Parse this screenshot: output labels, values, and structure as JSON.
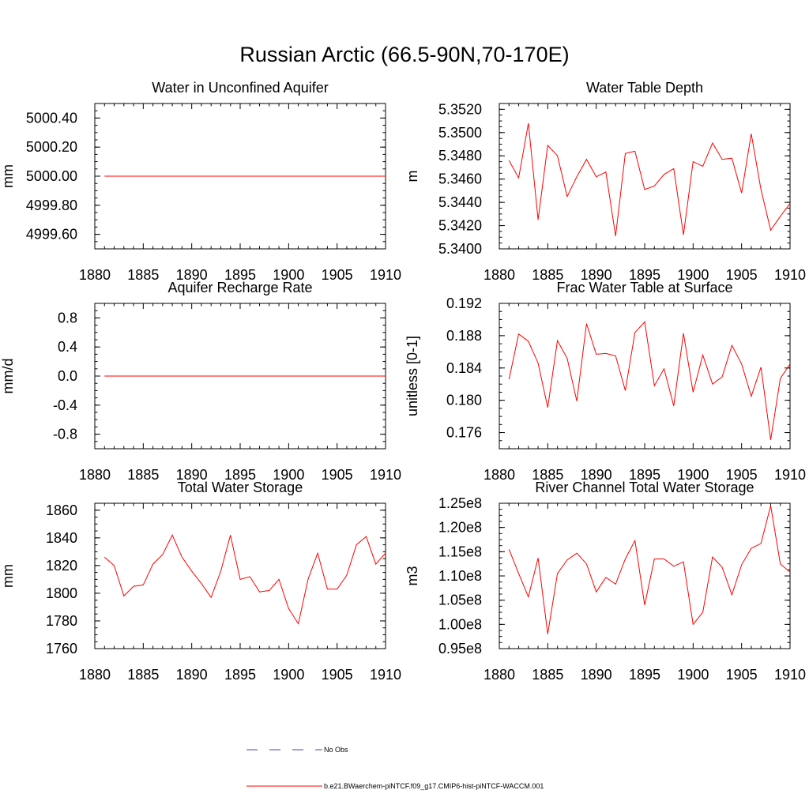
{
  "figure": {
    "title": "Russian Arctic (66.5-90N,70-170E)"
  },
  "legend": {
    "entries": [
      {
        "label": "No Obs",
        "color": "#4a4ab0",
        "style": "dashed"
      },
      {
        "label": "b.e21.BWaerchem-piNTCF.f09_g17.CMIP6-hist-piNTCF-WACCM.001",
        "color": "#ff0000",
        "style": "solid"
      }
    ]
  },
  "chart_data": [
    {
      "type": "line",
      "title": "Water in Unconfined Aquifer",
      "ylabel": "mm",
      "xlim": [
        1880,
        1910
      ],
      "ylim": [
        4999.5,
        5000.5
      ],
      "xticks": [
        1880,
        1885,
        1890,
        1895,
        1900,
        1905,
        1910
      ],
      "yticks": [
        4999.6,
        4999.8,
        5000.0,
        5000.2,
        5000.4
      ],
      "ytick_labels": [
        "4999.60",
        "4999.80",
        "5000.00",
        "5000.20",
        "5000.40"
      ],
      "x": [
        1881,
        1882,
        1883,
        1884,
        1885,
        1886,
        1887,
        1888,
        1889,
        1890,
        1891,
        1892,
        1893,
        1894,
        1895,
        1896,
        1897,
        1898,
        1899,
        1900,
        1901,
        1902,
        1903,
        1904,
        1905,
        1906,
        1907,
        1908,
        1909,
        1910
      ],
      "series": [
        {
          "color": "#ff0000",
          "values": [
            5000,
            5000,
            5000,
            5000,
            5000,
            5000,
            5000,
            5000,
            5000,
            5000,
            5000,
            5000,
            5000,
            5000,
            5000,
            5000,
            5000,
            5000,
            5000,
            5000,
            5000,
            5000,
            5000,
            5000,
            5000,
            5000,
            5000,
            5000,
            5000,
            5000
          ]
        }
      ]
    },
    {
      "type": "line",
      "title": "Water Table Depth",
      "ylabel": "m",
      "xlim": [
        1880,
        1910
      ],
      "ylim": [
        5.34,
        5.3525
      ],
      "xticks": [
        1880,
        1885,
        1890,
        1895,
        1900,
        1905,
        1910
      ],
      "yticks": [
        5.34,
        5.342,
        5.344,
        5.346,
        5.348,
        5.35,
        5.352
      ],
      "ytick_labels": [
        "5.3400",
        "5.3420",
        "5.3440",
        "5.3460",
        "5.3480",
        "5.3500",
        "5.3520"
      ],
      "x": [
        1881,
        1882,
        1883,
        1884,
        1885,
        1886,
        1887,
        1888,
        1889,
        1890,
        1891,
        1892,
        1893,
        1894,
        1895,
        1896,
        1897,
        1898,
        1899,
        1900,
        1901,
        1902,
        1903,
        1904,
        1905,
        1906,
        1907,
        1908,
        1909,
        1910
      ],
      "series": [
        {
          "color": "#ff0000",
          "values": [
            5.3476,
            5.3461,
            5.3508,
            5.3425,
            5.3489,
            5.348,
            5.3445,
            5.3462,
            5.3477,
            5.3462,
            5.3466,
            5.3411,
            5.3482,
            5.3484,
            5.3451,
            5.3454,
            5.3464,
            5.3469,
            5.3412,
            5.3475,
            5.3471,
            5.3491,
            5.3477,
            5.3478,
            5.3448,
            5.3499,
            5.3451,
            5.3416,
            5.3428,
            5.3439
          ]
        }
      ]
    },
    {
      "type": "line",
      "title": "Aquifer Recharge Rate",
      "ylabel": "mm/d",
      "xlim": [
        1880,
        1910
      ],
      "ylim": [
        -1.0,
        1.0
      ],
      "xticks": [
        1880,
        1885,
        1890,
        1895,
        1900,
        1905,
        1910
      ],
      "yticks": [
        -0.8,
        -0.4,
        0.0,
        0.4,
        0.8
      ],
      "ytick_labels": [
        "-0.8",
        "-0.4",
        "0.0",
        "0.4",
        "0.8"
      ],
      "x": [
        1881,
        1882,
        1883,
        1884,
        1885,
        1886,
        1887,
        1888,
        1889,
        1890,
        1891,
        1892,
        1893,
        1894,
        1895,
        1896,
        1897,
        1898,
        1899,
        1900,
        1901,
        1902,
        1903,
        1904,
        1905,
        1906,
        1907,
        1908,
        1909,
        1910
      ],
      "series": [
        {
          "color": "#ff0000",
          "values": [
            0,
            0,
            0,
            0,
            0,
            0,
            0,
            0,
            0,
            0,
            0,
            0,
            0,
            0,
            0,
            0,
            0,
            0,
            0,
            0,
            0,
            0,
            0,
            0,
            0,
            0,
            0,
            0,
            0,
            0
          ]
        }
      ]
    },
    {
      "type": "line",
      "title": "Frac Water Table at Surface",
      "ylabel": "unitless [0-1]",
      "xlim": [
        1880,
        1910
      ],
      "ylim": [
        0.174,
        0.192
      ],
      "xticks": [
        1880,
        1885,
        1890,
        1895,
        1900,
        1905,
        1910
      ],
      "yticks": [
        0.176,
        0.18,
        0.184,
        0.188,
        0.192
      ],
      "ytick_labels": [
        "0.176",
        "0.180",
        "0.184",
        "0.188",
        "0.192"
      ],
      "x": [
        1881,
        1882,
        1883,
        1884,
        1885,
        1886,
        1887,
        1888,
        1889,
        1890,
        1891,
        1892,
        1893,
        1894,
        1895,
        1896,
        1897,
        1898,
        1899,
        1900,
        1901,
        1902,
        1903,
        1904,
        1905,
        1906,
        1907,
        1908,
        1909,
        1910
      ],
      "series": [
        {
          "color": "#ff0000",
          "values": [
            0.1826,
            0.1882,
            0.1873,
            0.1846,
            0.1791,
            0.1874,
            0.1852,
            0.1799,
            0.1895,
            0.1857,
            0.1858,
            0.1855,
            0.1812,
            0.1884,
            0.1897,
            0.1818,
            0.1839,
            0.1793,
            0.1883,
            0.181,
            0.1856,
            0.182,
            0.1829,
            0.1868,
            0.1845,
            0.1805,
            0.1841,
            0.1751,
            0.1827,
            0.1845
          ]
        }
      ]
    },
    {
      "type": "line",
      "title": "Total Water Storage",
      "ylabel": "mm",
      "xlim": [
        1880,
        1910
      ],
      "ylim": [
        1760,
        1865
      ],
      "xticks": [
        1880,
        1885,
        1890,
        1895,
        1900,
        1905,
        1910
      ],
      "yticks": [
        1760,
        1780,
        1800,
        1820,
        1840,
        1860
      ],
      "ytick_labels": [
        "1760",
        "1780",
        "1800",
        "1820",
        "1840",
        "1860"
      ],
      "x": [
        1881,
        1882,
        1883,
        1884,
        1885,
        1886,
        1887,
        1888,
        1889,
        1890,
        1891,
        1892,
        1893,
        1894,
        1895,
        1896,
        1897,
        1898,
        1899,
        1900,
        1901,
        1902,
        1903,
        1904,
        1905,
        1906,
        1907,
        1908,
        1909,
        1910
      ],
      "series": [
        {
          "color": "#ff0000",
          "values": [
            1826,
            1820,
            1798,
            1805,
            1806,
            1821,
            1828,
            1842,
            1826,
            1816,
            1807,
            1797,
            1816,
            1842,
            1810,
            1812,
            1801,
            1802,
            1810,
            1789,
            1778,
            1810,
            1829,
            1803,
            1803,
            1813,
            1835,
            1841,
            1821,
            1829
          ]
        }
      ]
    },
    {
      "type": "line",
      "title": "River Channel Total Water Storage",
      "ylabel": "m3",
      "xlim": [
        1880,
        1910
      ],
      "ylim": [
        95000000.0,
        125000000.0
      ],
      "xticks": [
        1880,
        1885,
        1890,
        1895,
        1900,
        1905,
        1910
      ],
      "yticks": [
        95000000.0,
        100000000.0,
        105000000.0,
        110000000.0,
        115000000.0,
        120000000.0,
        125000000.0
      ],
      "ytick_labels": [
        "0.95e8",
        "1.00e8",
        "1.05e8",
        "1.10e8",
        "1.15e8",
        "1.20e8",
        "1.25e8"
      ],
      "x": [
        1881,
        1882,
        1883,
        1884,
        1885,
        1886,
        1887,
        1888,
        1889,
        1890,
        1891,
        1892,
        1893,
        1894,
        1895,
        1896,
        1897,
        1898,
        1899,
        1900,
        1901,
        1902,
        1903,
        1904,
        1905,
        1906,
        1907,
        1908,
        1909,
        1910
      ],
      "series": [
        {
          "color": "#ff0000",
          "values": [
            115500000.0,
            110500000.0,
            105700000.0,
            113700000.0,
            98000000.0,
            110500000.0,
            113300000.0,
            114700000.0,
            112500000.0,
            106700000.0,
            109700000.0,
            108300000.0,
            113500000.0,
            117300000.0,
            104000000.0,
            113500000.0,
            113500000.0,
            112000000.0,
            112900000.0,
            100000000.0,
            102500000.0,
            113900000.0,
            111800000.0,
            106100000.0,
            112300000.0,
            115700000.0,
            116700000.0,
            124500000.0,
            112500000.0,
            110800000.0
          ]
        }
      ]
    }
  ]
}
